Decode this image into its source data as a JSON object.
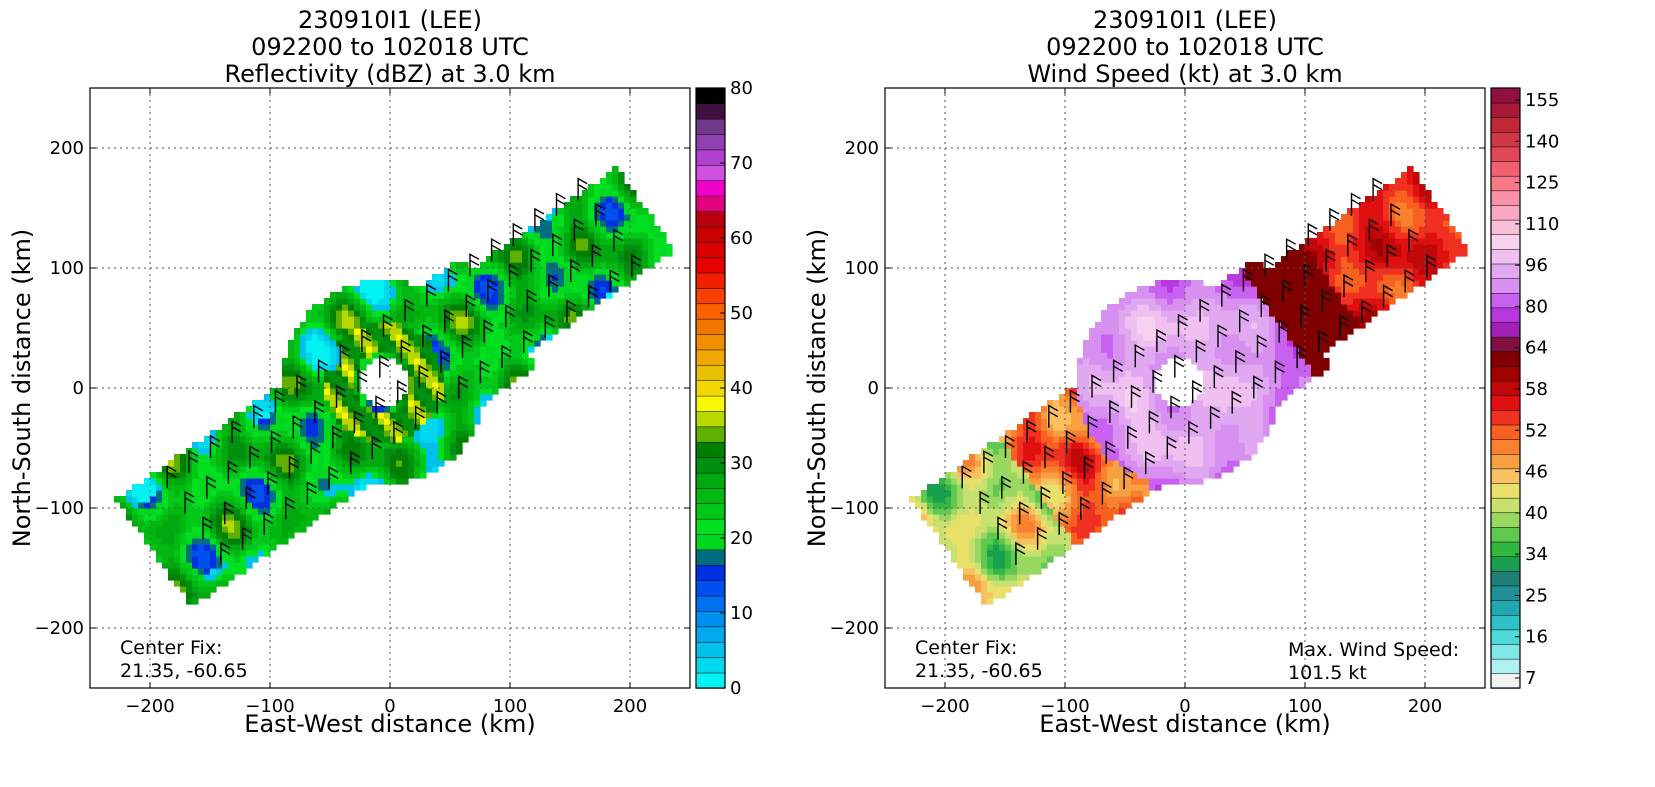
{
  "chart_data": [
    {
      "type": "heatmap",
      "title_lines": [
        "230910I1 (LEE)",
        "092200 to 102018 UTC",
        "Reflectivity (dBZ) at 3.0 km"
      ],
      "xlabel": "East-West distance (km)",
      "ylabel": "North-South distance (km)",
      "xlim": [
        -250,
        250
      ],
      "ylim": [
        -250,
        250
      ],
      "xticks": [
        -200,
        -100,
        0,
        100,
        200
      ],
      "yticks": [
        -200,
        -100,
        0,
        100,
        200
      ],
      "xtick_labels": [
        "−200",
        "−100",
        "0",
        "100",
        "200"
      ],
      "ytick_labels": [
        "−200",
        "−100",
        "0",
        "100",
        "200"
      ],
      "grid": true,
      "colorbar": {
        "min": 0,
        "max": 80,
        "tick_values": [
          0,
          10,
          20,
          30,
          40,
          50,
          60,
          70,
          80
        ],
        "tick_labels": [
          "0",
          "10",
          "20",
          "30",
          "40",
          "50",
          "60",
          "70",
          "80"
        ],
        "colors": [
          "#00f2f2",
          "#00d8ee",
          "#00c0ec",
          "#00a8ec",
          "#0090f0",
          "#0070f0",
          "#0050f0",
          "#0030e0",
          "#006e80",
          "#00d820",
          "#00e020",
          "#00c818",
          "#00b810",
          "#00a810",
          "#009010",
          "#008000",
          "#60b000",
          "#b8d800",
          "#f8f800",
          "#f0d800",
          "#e8c000",
          "#f0a800",
          "#f09000",
          "#f07800",
          "#f86000",
          "#f84000",
          "#f02000",
          "#e80000",
          "#d80000",
          "#c80000",
          "#b80010",
          "#e00080",
          "#f000c8",
          "#d050e0",
          "#b040d0",
          "#9040b0",
          "#703888",
          "#401040",
          "#000000"
        ]
      },
      "annotations": [
        "Center Fix:",
        "21.35, -60.65"
      ]
    },
    {
      "type": "heatmap",
      "title_lines": [
        "230910I1 (LEE)",
        "092200 to 102018 UTC",
        "Wind Speed (kt) at 3.0 km"
      ],
      "xlabel": "East-West distance (km)",
      "ylabel": "North-South distance (km)",
      "xlim": [
        -250,
        250
      ],
      "ylim": [
        -250,
        250
      ],
      "xticks": [
        -200,
        -100,
        0,
        100,
        200
      ],
      "yticks": [
        -200,
        -100,
        0,
        100,
        200
      ],
      "xtick_labels": [
        "−200",
        "−100",
        "0",
        "100",
        "200"
      ],
      "ytick_labels": [
        "−200",
        "−100",
        "0",
        "100",
        "200"
      ],
      "grid": true,
      "colorbar": {
        "tick_labels": [
          "7",
          "16",
          "25",
          "34",
          "40",
          "46",
          "52",
          "58",
          "64",
          "80",
          "96",
          "110",
          "125",
          "140",
          "155"
        ],
        "colors": [
          "#f2f2f2",
          "#b0f0f0",
          "#80e8e8",
          "#50d8d8",
          "#30c0c8",
          "#20a8b0",
          "#209098",
          "#208078",
          "#18a050",
          "#30b840",
          "#60c850",
          "#98d860",
          "#c8e070",
          "#e8e068",
          "#f8c060",
          "#f8a040",
          "#f88030",
          "#f86020",
          "#f03020",
          "#e01010",
          "#c00808",
          "#a00000",
          "#800000",
          "#801040",
          "#a020b8",
          "#b838e0",
          "#c860f0",
          "#d890f0",
          "#e0a8f0",
          "#f0c0f0",
          "#f8d0f0",
          "#f8c0d8",
          "#f8a8c0",
          "#f890a8",
          "#f87888",
          "#f06070",
          "#e04858",
          "#d03848",
          "#c02838",
          "#a81838",
          "#901040"
        ]
      },
      "annotations": [
        "Center Fix:",
        "21.35, -60.65",
        "Max. Wind Speed:",
        "101.5 kt"
      ],
      "max_wind_speed_kt": 101.5
    }
  ]
}
